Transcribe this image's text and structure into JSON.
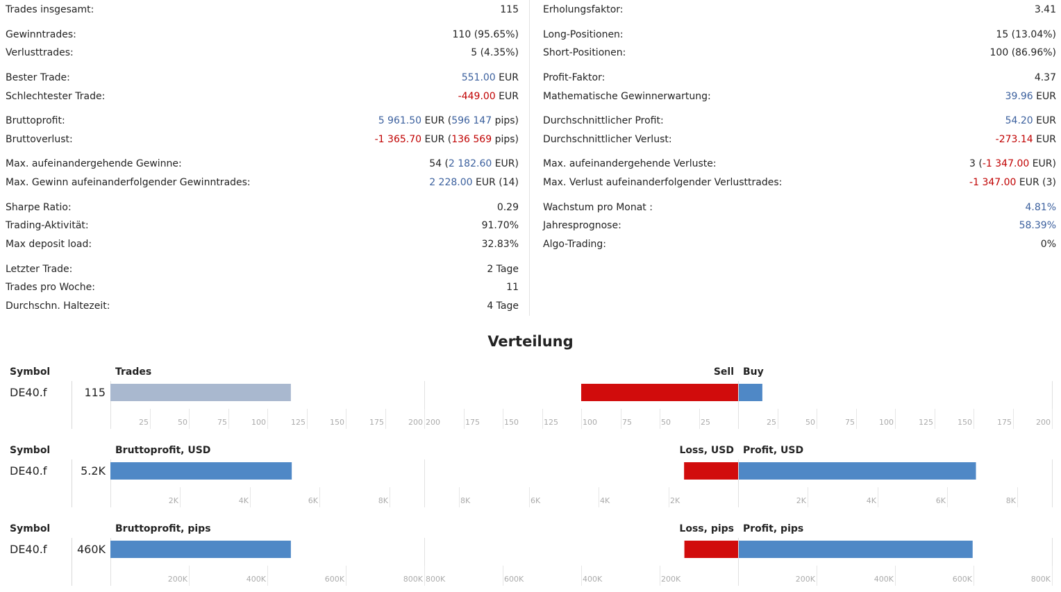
{
  "stats": {
    "left": [
      {
        "label": "Trades insgesamt:",
        "parts": [
          {
            "t": "115"
          }
        ]
      },
      {
        "label": "Gewinntrades:",
        "parts": [
          {
            "t": "110 (95.65%)"
          }
        ]
      },
      {
        "label": "Verlusttrades:",
        "parts": [
          {
            "t": "5 (4.35%)"
          }
        ]
      },
      {
        "label": "Bester Trade:",
        "parts": [
          {
            "t": "551.00",
            "c": "pos"
          },
          {
            "t": " EUR"
          }
        ]
      },
      {
        "label": "Schlechtester Trade:",
        "parts": [
          {
            "t": "-449.00",
            "c": "neg"
          },
          {
            "t": " EUR"
          }
        ]
      },
      {
        "label": "Bruttoprofit:",
        "parts": [
          {
            "t": "5 961.50",
            "c": "pos"
          },
          {
            "t": " EUR ("
          },
          {
            "t": "596 147",
            "c": "pos"
          },
          {
            "t": " pips)"
          }
        ]
      },
      {
        "label": "Bruttoverlust:",
        "parts": [
          {
            "t": "-1 365.70",
            "c": "neg"
          },
          {
            "t": " EUR ("
          },
          {
            "t": "136 569",
            "c": "neg"
          },
          {
            "t": " pips)"
          }
        ]
      },
      {
        "label": "Max. aufeinandergehende Gewinne:",
        "parts": [
          {
            "t": "54 ("
          },
          {
            "t": "2 182.60",
            "c": "pos"
          },
          {
            "t": " EUR)"
          }
        ]
      },
      {
        "label": "Max. Gewinn aufeinanderfolgender Gewinntrades:",
        "parts": [
          {
            "t": "2 228.00",
            "c": "pos"
          },
          {
            "t": " EUR (14)"
          }
        ]
      },
      {
        "label": "Sharpe Ratio:",
        "parts": [
          {
            "t": "0.29"
          }
        ]
      },
      {
        "label": "Trading-Aktivität:",
        "parts": [
          {
            "t": "91.70%"
          }
        ]
      },
      {
        "label": "Max deposit load:",
        "parts": [
          {
            "t": "32.83%"
          }
        ]
      },
      {
        "label": "Letzter Trade:",
        "parts": [
          {
            "t": "2 Tage"
          }
        ]
      },
      {
        "label": "Trades pro Woche:",
        "parts": [
          {
            "t": "11"
          }
        ]
      },
      {
        "label": "Durchschn. Haltezeit:",
        "parts": [
          {
            "t": "4 Tage"
          }
        ]
      }
    ],
    "right": [
      {
        "label": "Erholungsfaktor:",
        "parts": [
          {
            "t": "3.41"
          }
        ]
      },
      {
        "label": "Long-Positionen:",
        "parts": [
          {
            "t": "15 (13.04%)"
          }
        ]
      },
      {
        "label": "Short-Positionen:",
        "parts": [
          {
            "t": "100 (86.96%)"
          }
        ]
      },
      {
        "label": "Profit-Faktor:",
        "parts": [
          {
            "t": "4.37"
          }
        ]
      },
      {
        "label": "Mathematische Gewinnerwartung:",
        "parts": [
          {
            "t": "39.96",
            "c": "pos"
          },
          {
            "t": " EUR"
          }
        ]
      },
      {
        "label": "Durchschnittlicher Profit:",
        "parts": [
          {
            "t": "54.20",
            "c": "pos"
          },
          {
            "t": " EUR"
          }
        ]
      },
      {
        "label": "Durchschnittlicher Verlust:",
        "parts": [
          {
            "t": "-273.14",
            "c": "neg"
          },
          {
            "t": " EUR"
          }
        ]
      },
      {
        "label": "Max. aufeinandergehende Verluste:",
        "parts": [
          {
            "t": "3 ("
          },
          {
            "t": "-1 347.00",
            "c": "neg"
          },
          {
            "t": " EUR)"
          }
        ]
      },
      {
        "label": "Max. Verlust aufeinanderfolgender Verlusttrades:",
        "parts": [
          {
            "t": "-1 347.00",
            "c": "neg"
          },
          {
            "t": " EUR (3)"
          }
        ]
      },
      {
        "label": "Wachstum pro Monat :",
        "parts": [
          {
            "t": "4.81%",
            "c": "pos"
          }
        ]
      },
      {
        "label": "Jahresprognose:",
        "parts": [
          {
            "t": "58.39%",
            "c": "pos"
          }
        ]
      },
      {
        "label": "Algo-Trading:",
        "parts": [
          {
            "t": "0%"
          }
        ]
      }
    ]
  },
  "distribution_title": "Verteilung",
  "colors": {
    "positive_text": "#3a5f9d",
    "negative_text": "#c00000",
    "bar_total_trades": "#a9b8cf",
    "bar_blue": "#4f88c6",
    "bar_red": "#d10c0c"
  },
  "chart_data": [
    {
      "type": "bar",
      "symbol_header": "Symbol",
      "symbol": "DE40.f",
      "total_label": "115",
      "left_header": "Trades",
      "left_value": 115,
      "left_ticks": [
        "25",
        "50",
        "75",
        "100",
        "125",
        "150",
        "175",
        "200"
      ],
      "left_max": 200,
      "mid_ticks": [
        "200",
        "175",
        "150",
        "125",
        "100",
        "75",
        "50",
        "25"
      ],
      "mid_max": 200,
      "neg_header": "Sell",
      "neg_value": 100,
      "pos_header": "Buy",
      "pos_value": 15,
      "right_ticks": [
        "25",
        "50",
        "75",
        "100",
        "125",
        "150",
        "175",
        "200"
      ],
      "right_max": 200
    },
    {
      "type": "bar",
      "symbol_header": "Symbol",
      "symbol": "DE40.f",
      "total_label": "5.2K",
      "left_header": "Bruttoprofit, USD",
      "left_value": 5200,
      "left_ticks": [
        "2K",
        "4K",
        "6K",
        "8K"
      ],
      "left_max": 9000,
      "mid_ticks": [
        "8K",
        "6K",
        "4K",
        "2K"
      ],
      "mid_max": 9000,
      "neg_header": "Loss, USD",
      "neg_value": 1550,
      "pos_header": "Profit, USD",
      "pos_value": 6800,
      "right_ticks": [
        "2K",
        "4K",
        "6K",
        "8K"
      ],
      "right_max": 9000
    },
    {
      "type": "bar",
      "symbol_header": "Symbol",
      "symbol": "DE40.f",
      "total_label": "460K",
      "left_header": "Bruttoprofit, pips",
      "left_value": 460000,
      "left_ticks": [
        "200K",
        "400K",
        "600K",
        "800K"
      ],
      "left_max": 800000,
      "mid_ticks": [
        "800K",
        "600K",
        "400K",
        "200K"
      ],
      "mid_max": 800000,
      "neg_header": "Loss, pips",
      "neg_value": 137000,
      "pos_header": "Profit, pips",
      "pos_value": 596000,
      "right_ticks": [
        "200K",
        "400K",
        "600K",
        "800K"
      ],
      "right_max": 800000
    }
  ]
}
